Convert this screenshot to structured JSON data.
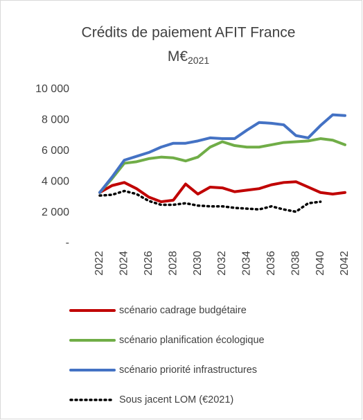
{
  "chart_data": {
    "type": "line",
    "title": "Crédits de paiement AFIT France",
    "unit": "M€",
    "unit_subscript": "2021",
    "x": [
      2022,
      2023,
      2024,
      2025,
      2026,
      2027,
      2028,
      2029,
      2030,
      2031,
      2032,
      2033,
      2034,
      2035,
      2036,
      2037,
      2038,
      2039,
      2040,
      2041,
      2042
    ],
    "xlim": [
      2022,
      2042
    ],
    "xticks": [
      2022,
      2024,
      2026,
      2028,
      2030,
      2032,
      2034,
      2036,
      2038,
      2040,
      2042
    ],
    "ylim": [
      0,
      10000
    ],
    "yticks": [
      {
        "value": 0,
        "label": "-"
      },
      {
        "value": 2000,
        "label": "2 000"
      },
      {
        "value": 4000,
        "label": "4 000"
      },
      {
        "value": 6000,
        "label": "6 000"
      },
      {
        "value": 8000,
        "label": "8 000"
      },
      {
        "value": 10000,
        "label": "10 000"
      }
    ],
    "grid": false,
    "legend": "bottom",
    "series": [
      {
        "name": "scénario cadrage budgétaire",
        "color": "#c00000",
        "line_style": "solid",
        "values": [
          3300,
          3750,
          3950,
          3550,
          3000,
          2700,
          2800,
          3850,
          3200,
          3650,
          3600,
          3350,
          3450,
          3550,
          3800,
          3950,
          4000,
          3650,
          3300,
          3200,
          3300
        ]
      },
      {
        "name": "scénario planification écologique",
        "color": "#70ad47",
        "line_style": "solid",
        "values": [
          3300,
          4200,
          5200,
          5300,
          5500,
          5600,
          5550,
          5350,
          5600,
          6250,
          6600,
          6350,
          6250,
          6250,
          6400,
          6550,
          6600,
          6650,
          6800,
          6700,
          6400
        ]
      },
      {
        "name": "scénario priorité infrastructures",
        "color": "#4472c4",
        "line_style": "solid",
        "values": [
          3300,
          4300,
          5400,
          5650,
          5900,
          6250,
          6500,
          6500,
          6650,
          6850,
          6800,
          6800,
          7350,
          7850,
          7800,
          7700,
          7000,
          6850,
          7650,
          8350,
          8300
        ]
      },
      {
        "name": "Sous jacent LOM (€2021)",
        "color": "#000000",
        "line_style": "dotted",
        "values": [
          3100,
          3150,
          3400,
          3200,
          2750,
          2500,
          2500,
          2600,
          2450,
          2400,
          2400,
          2300,
          2250,
          2200,
          2400,
          2200,
          2050,
          2600,
          2700,
          null,
          null
        ]
      }
    ]
  }
}
